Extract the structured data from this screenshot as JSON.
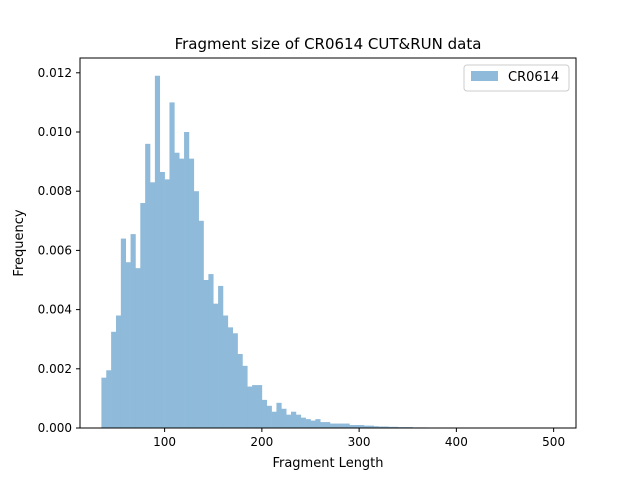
{
  "chart_data": {
    "type": "bar",
    "title": "Fragment size of CR0614 CUT&RUN data",
    "xlabel": "Fragment Length",
    "ylabel": "Frequency",
    "xlim": [
      13,
      523
    ],
    "ylim": [
      0,
      0.0125
    ],
    "xticks": [
      100,
      200,
      300,
      400,
      500
    ],
    "yticks": [
      0.0,
      0.002,
      0.004,
      0.006,
      0.008,
      0.01,
      0.012
    ],
    "ytick_labels": [
      "0.000",
      "0.002",
      "0.004",
      "0.006",
      "0.008",
      "0.010",
      "0.012"
    ],
    "grid": false,
    "legend": {
      "placement": "top-right",
      "entries": [
        "CR0614"
      ]
    },
    "bar_color": "#8fbad9",
    "series": [
      {
        "name": "CR0614",
        "bin_width": 5,
        "bins_start": [
          35,
          40,
          45,
          50,
          55,
          60,
          65,
          70,
          75,
          80,
          85,
          90,
          95,
          100,
          105,
          110,
          115,
          120,
          125,
          130,
          135,
          140,
          145,
          150,
          155,
          160,
          165,
          170,
          175,
          180,
          185,
          190,
          195,
          200,
          205,
          210,
          215,
          220,
          225,
          230,
          235,
          240,
          245,
          250,
          255,
          260,
          265,
          270,
          275,
          280,
          285,
          290,
          295,
          300,
          305,
          310,
          315,
          320,
          325,
          330,
          335,
          340,
          345,
          350,
          355,
          360,
          365
        ],
        "values": [
          0.0017,
          0.00195,
          0.00325,
          0.0038,
          0.0064,
          0.0056,
          0.00655,
          0.0054,
          0.0076,
          0.0096,
          0.0083,
          0.0119,
          0.00865,
          0.0084,
          0.011,
          0.0093,
          0.0091,
          0.01,
          0.0091,
          0.008,
          0.007,
          0.005,
          0.0052,
          0.0042,
          0.0048,
          0.0038,
          0.0034,
          0.0032,
          0.0025,
          0.0021,
          0.0014,
          0.00145,
          0.00145,
          0.00095,
          0.00075,
          0.00055,
          0.00085,
          0.00065,
          0.00045,
          0.00055,
          0.00045,
          0.00035,
          0.0003,
          0.00025,
          0.0003,
          0.0002,
          0.0002,
          0.00015,
          0.00015,
          0.00015,
          0.00015,
          0.0001,
          0.0001,
          0.0001,
          8e-05,
          8e-05,
          6e-05,
          5e-05,
          5e-05,
          4e-05,
          4e-05,
          3e-05,
          3e-05,
          3e-05,
          2e-05,
          2e-05,
          2e-05
        ]
      }
    ]
  }
}
